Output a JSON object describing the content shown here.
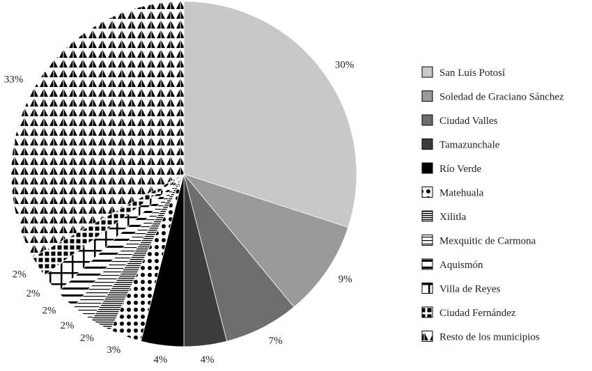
{
  "chart_data": {
    "type": "pie",
    "title": "",
    "start_angle_deg": 0,
    "direction": "clockwise",
    "legend_position": "right",
    "slices": [
      {
        "label": "San Luis Potosí",
        "value": 30,
        "display": "30%",
        "fill": "#c8c8c8",
        "pattern": "solid"
      },
      {
        "label": "Soledad de Graciano Sánchez",
        "value": 9,
        "display": "9%",
        "fill": "#9a9a9a",
        "pattern": "solid"
      },
      {
        "label": "Ciudad Valles",
        "value": 7,
        "display": "7%",
        "fill": "#6e6e6e",
        "pattern": "solid"
      },
      {
        "label": "Tamazunchale",
        "value": 4,
        "display": "4%",
        "fill": "#3c3c3c",
        "pattern": "solid"
      },
      {
        "label": "Río Verde",
        "value": 4,
        "display": "4%",
        "fill": "#000000",
        "pattern": "solid"
      },
      {
        "label": "Matehuala",
        "value": 3,
        "display": "3%",
        "fill": "#ffffff",
        "pattern": "dots"
      },
      {
        "label": "Xilitla",
        "value": 2,
        "display": "2%",
        "fill": "#ffffff",
        "pattern": "dense-hlines"
      },
      {
        "label": "Mexquitic de Carmona",
        "value": 2,
        "display": "2%",
        "fill": "#ffffff",
        "pattern": "hlines"
      },
      {
        "label": "Aquismón",
        "value": 2,
        "display": "2%",
        "fill": "#ffffff",
        "pattern": "thick-hlines"
      },
      {
        "label": "Villa de Reyes",
        "value": 2,
        "display": "2%",
        "fill": "#ffffff",
        "pattern": "cross"
      },
      {
        "label": "Ciudad Fernández",
        "value": 2,
        "display": "2%",
        "fill": "#ffffff",
        "pattern": "squares"
      },
      {
        "label": "Resto de los municipios",
        "value": 33,
        "display": "33%",
        "fill": "#ffffff",
        "pattern": "triangles"
      }
    ]
  }
}
